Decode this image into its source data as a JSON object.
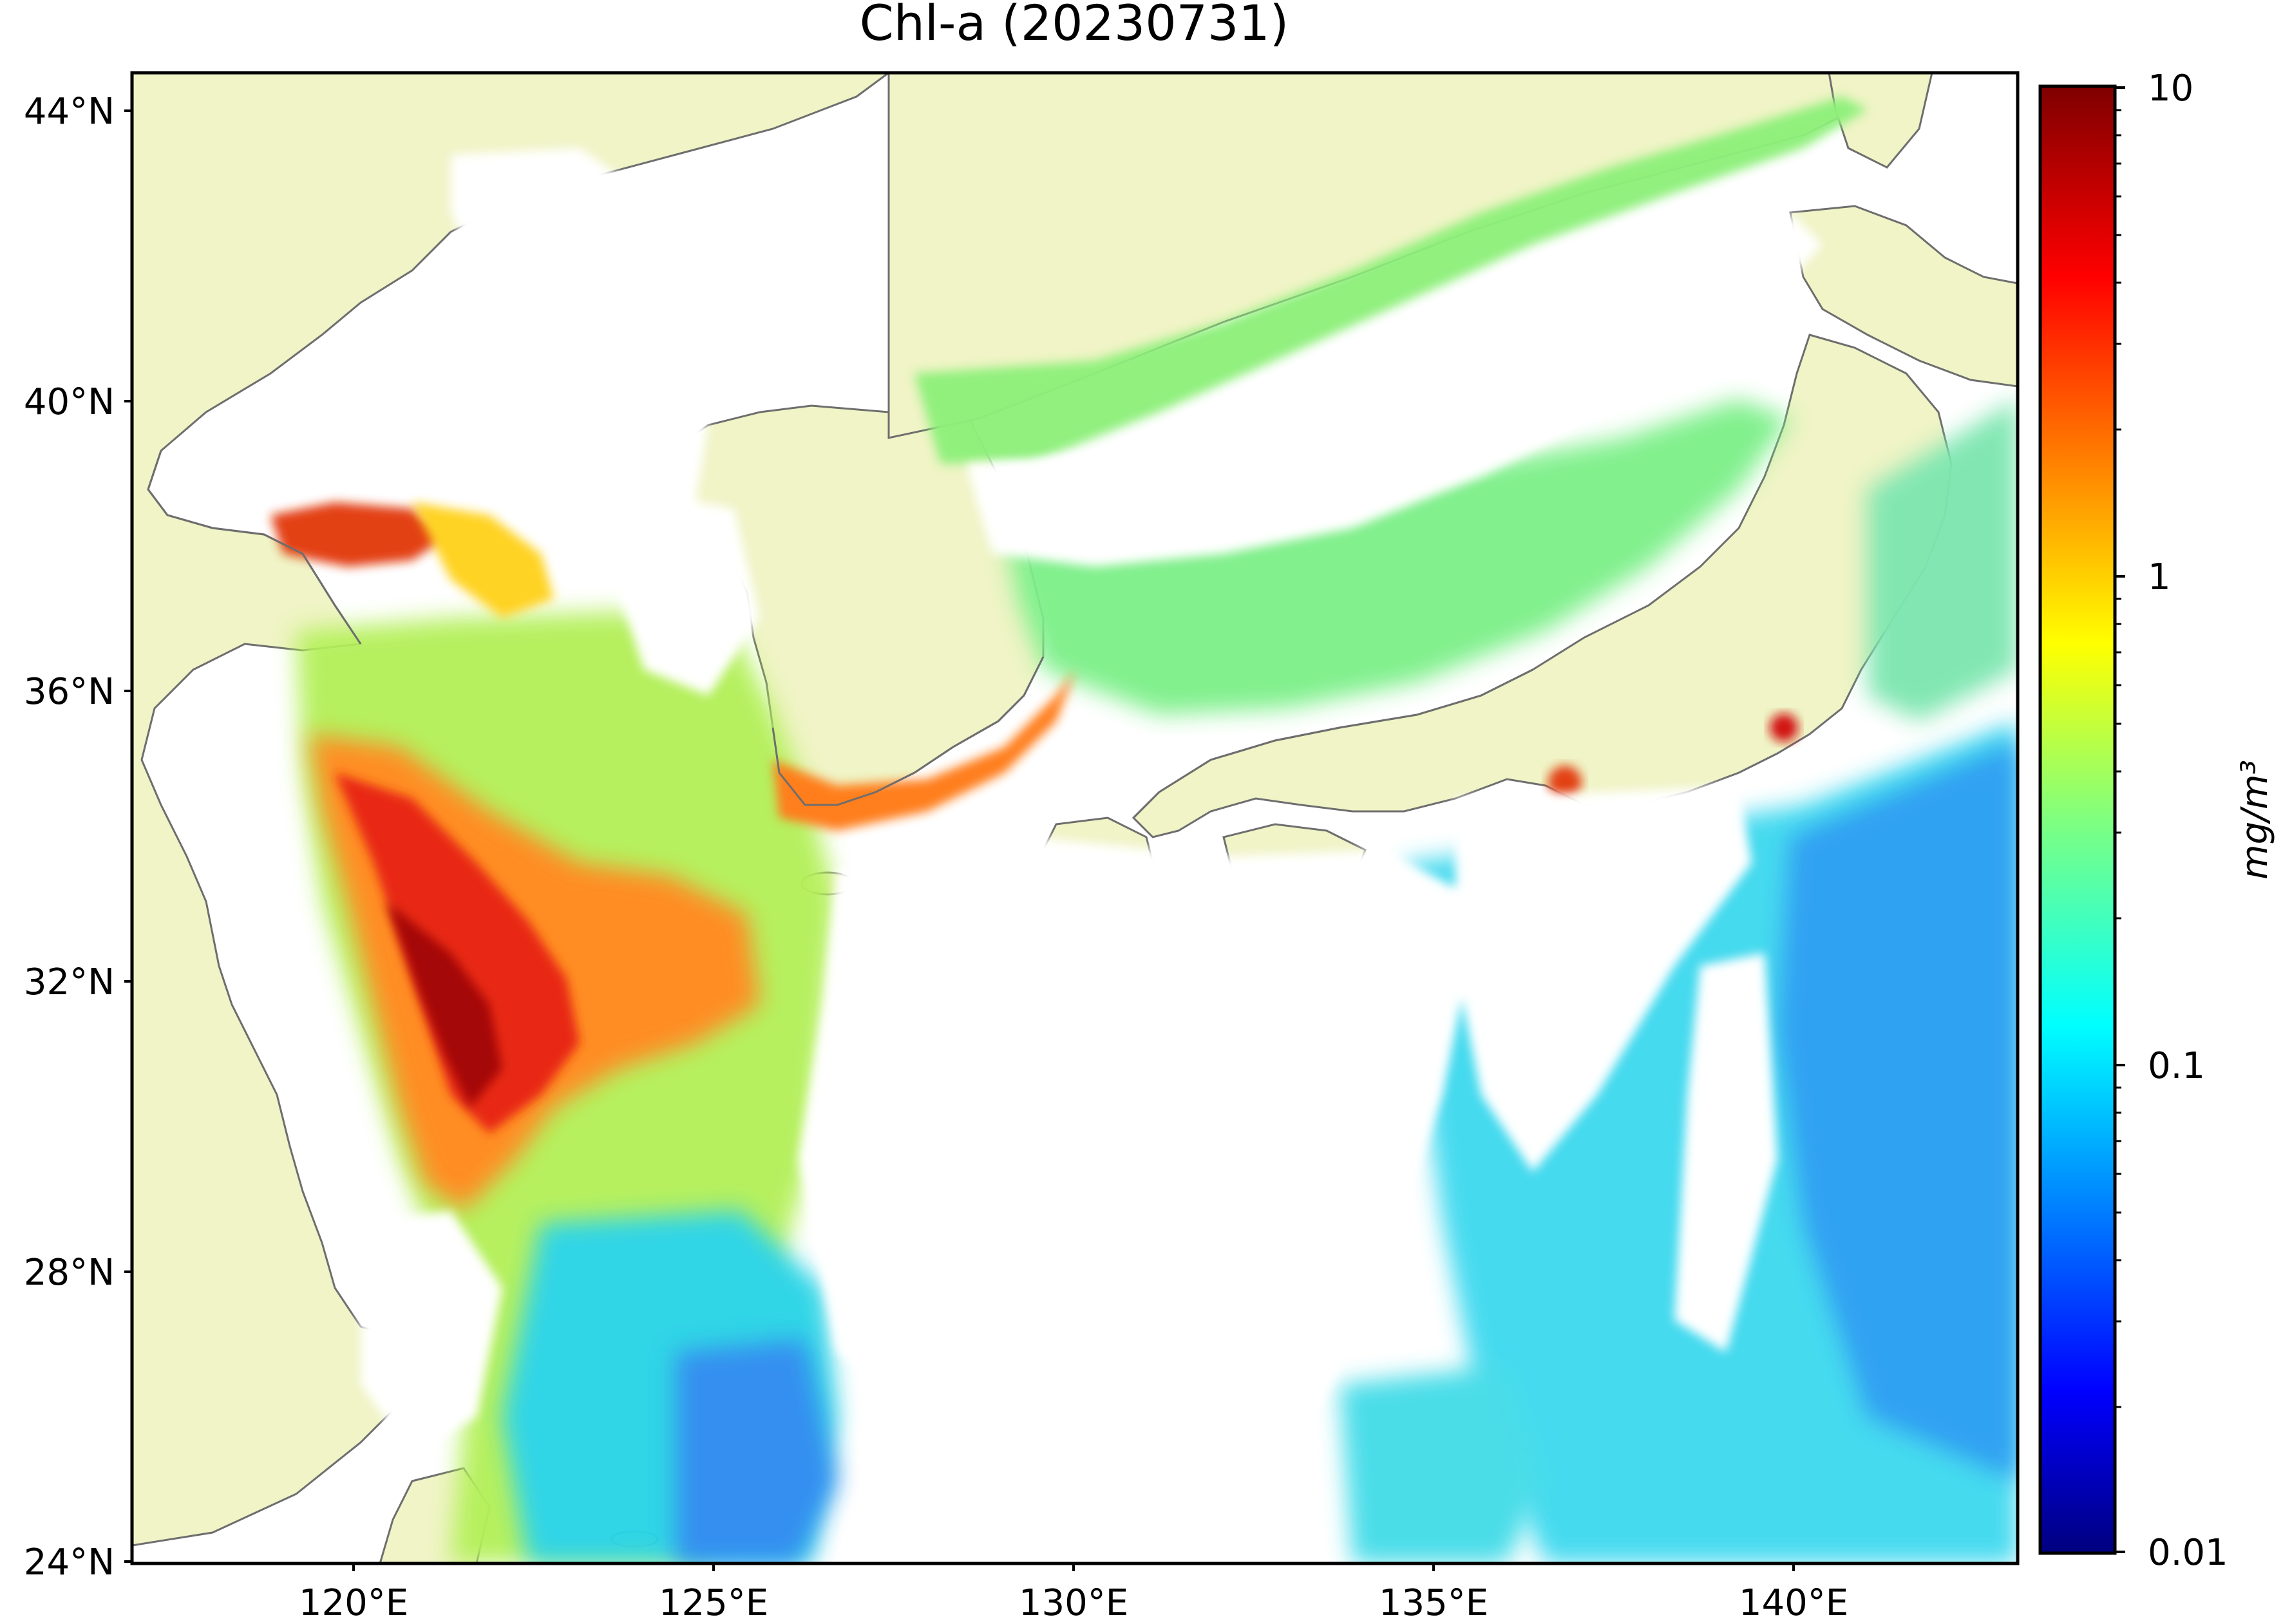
{
  "title": "Chl-a (20230731)",
  "map": {
    "lat_ticks": [
      "44°N",
      "40°N",
      "36°N",
      "32°N",
      "28°N",
      "24°N"
    ],
    "lon_ticks": [
      "120°E",
      "125°E",
      "130°E",
      "135°E",
      "140°E"
    ],
    "extent": {
      "lon_min": 116.8,
      "lon_max": 143.0,
      "lat_min": 24.0,
      "lat_max": 44.5
    },
    "colors": {
      "land": "#f0f4c6",
      "coast": "#6e6e6e",
      "no_data": "#ffffff"
    }
  },
  "colorbar": {
    "label": "mg/m³",
    "scale": "log",
    "range": [
      0.01,
      10
    ],
    "tick_labels": [
      "10",
      "1",
      "0.1",
      "0.01"
    ],
    "colormap": "jet"
  }
}
